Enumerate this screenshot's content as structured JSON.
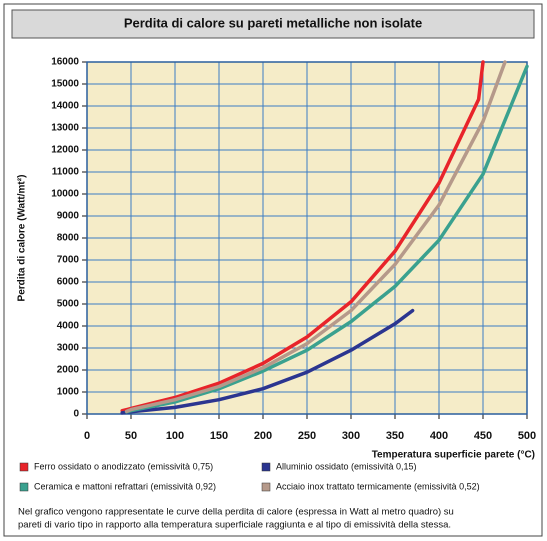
{
  "chart_data": {
    "type": "line",
    "title": "Perdita di calore su pareti metalliche non isolate",
    "xlabel": "Temperatura superficie parete (°C)",
    "ylabel": "Perdita di calore (Watt/mt²)",
    "xlim": [
      0,
      500
    ],
    "ylim": [
      0,
      16000
    ],
    "xticks": [
      0,
      50,
      100,
      150,
      200,
      250,
      300,
      350,
      400,
      450,
      500
    ],
    "yticks": [
      0,
      1000,
      2000,
      3000,
      4000,
      5000,
      6000,
      7000,
      8000,
      9000,
      10000,
      11000,
      12000,
      13000,
      14000,
      15000,
      16000
    ],
    "grid": true,
    "series": [
      {
        "name": "Ferro ossidato o anodizzato (emissività 0,75)",
        "color": "#e8242a",
        "x": [
          40,
          50,
          100,
          150,
          200,
          250,
          300,
          350,
          400,
          445,
          450
        ],
        "values": [
          150,
          250,
          750,
          1400,
          2300,
          3500,
          5100,
          7400,
          10500,
          14300,
          16000
        ]
      },
      {
        "name": "Alluminio ossidato (emissività 0,15)",
        "color": "#2b3590",
        "x": [
          40,
          50,
          100,
          150,
          200,
          250,
          300,
          350,
          370
        ],
        "values": [
          50,
          100,
          300,
          650,
          1150,
          1900,
          2900,
          4100,
          4700
        ]
      },
      {
        "name": "Ceramica e mattoni refrattari (emissività 0,92)",
        "color": "#3aa18f",
        "x": [
          45,
          50,
          100,
          150,
          200,
          250,
          300,
          350,
          400,
          450,
          500
        ],
        "values": [
          100,
          150,
          550,
          1150,
          1950,
          2900,
          4200,
          5800,
          7900,
          10900,
          15800
        ]
      },
      {
        "name": "Acciaio inox trattato termicamente (emissività 0,52)",
        "color": "#b5998a",
        "x": [
          45,
          50,
          100,
          150,
          200,
          250,
          300,
          350,
          400,
          450,
          475
        ],
        "values": [
          120,
          200,
          650,
          1250,
          2100,
          3200,
          4700,
          6800,
          9500,
          13300,
          16000
        ]
      }
    ],
    "note": [
      "Nel grafico vengono rappresentate le curve della perdita di calore (espressa in Watt al metro quadro) su",
      "pareti di vario tipo in rapporto alla temperatura superficiale raggiunta e al tipo di emissività della stessa."
    ]
  }
}
